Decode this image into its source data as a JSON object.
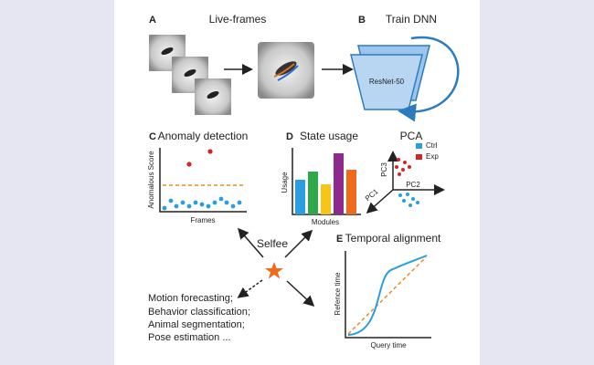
{
  "panel_a": {
    "letter": "A",
    "title": "Live-frames"
  },
  "panel_b": {
    "letter": "B",
    "title": "Train DNN",
    "network": "ResNet-50"
  },
  "panel_c": {
    "letter": "C",
    "title": "Anomaly detection",
    "y_label": "Anomalous Score",
    "x_label": "Frames"
  },
  "panel_d": {
    "letter": "D",
    "title": "State usage",
    "y_label": "Usage",
    "x_label": "Modules"
  },
  "pca": {
    "title": "PCA",
    "legend": [
      "Ctrl",
      "Exp"
    ],
    "axes": [
      "PC3",
      "PC2",
      "PC1"
    ]
  },
  "panel_e": {
    "letter": "E",
    "title": "Temporal alignment",
    "y_label": "Refence time",
    "x_label": "Query time"
  },
  "center": {
    "label": "Selfee"
  },
  "applications": [
    "Motion forecasting;",
    "Behavior classification;",
    "Animal segmentation;",
    "Pose estimation ..."
  ]
}
